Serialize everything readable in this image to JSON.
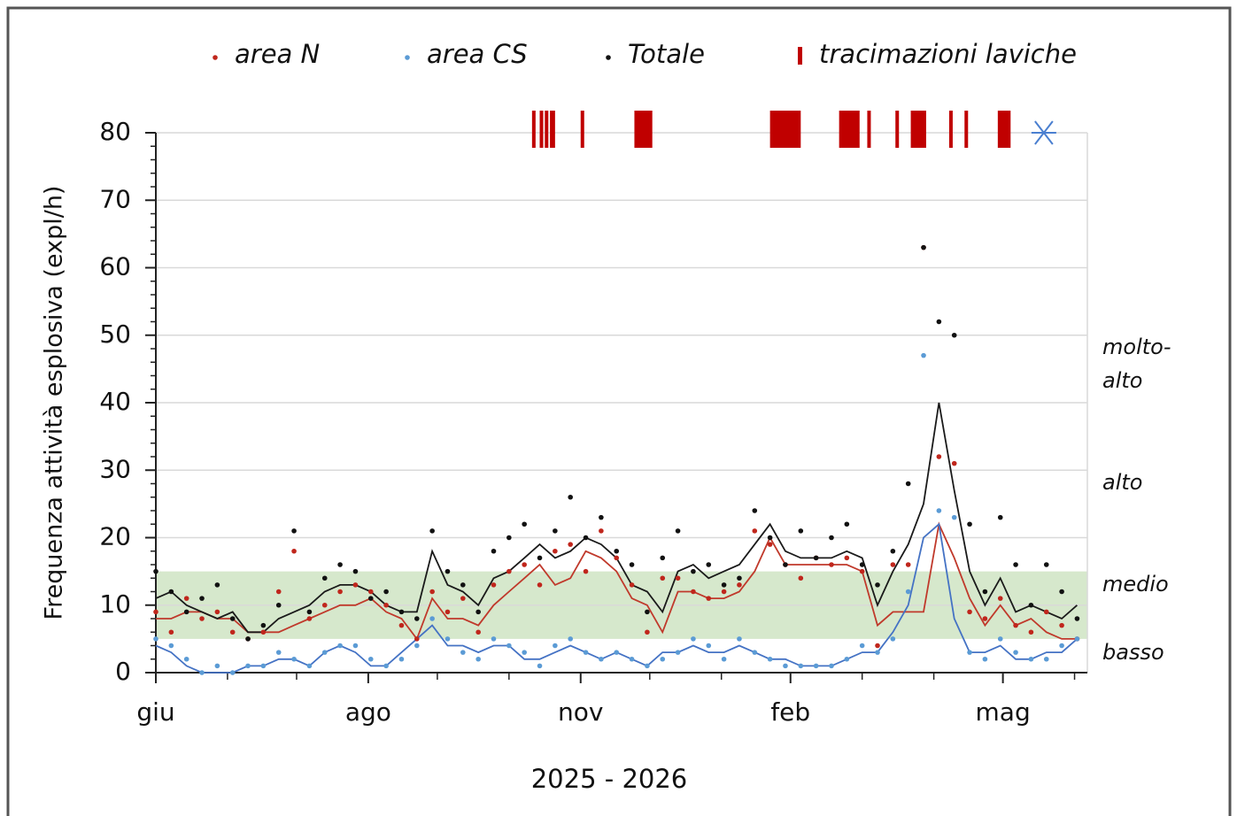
{
  "chart_data": {
    "type": "scatter",
    "ylabel": "Frequenza attività esplosiva (expl/h)",
    "xlabel": "2025 - 2026",
    "xlim": [
      0,
      364
    ],
    "xticks": [
      {
        "value": 0,
        "label": "giu"
      },
      {
        "value": 83,
        "label": "ago"
      },
      {
        "value": 166,
        "label": "nov"
      },
      {
        "value": 248,
        "label": "feb"
      },
      {
        "value": 331,
        "label": "mag"
      }
    ],
    "minor_xticks": [
      28,
      55,
      110,
      138,
      193,
      221,
      276,
      304,
      359
    ],
    "ylim": [
      0,
      80
    ],
    "yticks": [
      0,
      10,
      20,
      30,
      40,
      50,
      60,
      70,
      80
    ],
    "minor_yticks": [
      2,
      4,
      6,
      8,
      12,
      14,
      16,
      18,
      22,
      24,
      26,
      28,
      32,
      34,
      36,
      38,
      42,
      44,
      46,
      48,
      52,
      54,
      56,
      58,
      62,
      64,
      66,
      68,
      72,
      74,
      76,
      78
    ],
    "grid": true,
    "band": {
      "range": [
        5,
        15
      ],
      "color": "#d6e8cc"
    },
    "levels": [
      [
        "molto-",
        "alto"
      ],
      [
        "alto"
      ],
      [
        "medio"
      ],
      [
        "basso"
      ]
    ],
    "x": [
      0,
      6,
      12,
      18,
      24,
      30,
      36,
      42,
      48,
      54,
      60,
      66,
      72,
      78,
      84,
      90,
      96,
      102,
      108,
      114,
      120,
      126,
      132,
      138,
      144,
      150,
      156,
      162,
      168,
      174,
      180,
      186,
      192,
      198,
      204,
      210,
      216,
      222,
      228,
      234,
      240,
      246,
      252,
      258,
      264,
      270,
      276,
      282,
      288,
      294,
      300,
      306,
      312,
      318,
      324,
      330,
      336,
      342,
      348,
      354,
      360
    ],
    "series": [
      {
        "name": "area N",
        "color": "#c0261c",
        "values": [
          9,
          6,
          11,
          8,
          9,
          6,
          5,
          6,
          12,
          18,
          8,
          10,
          12,
          13,
          12,
          10,
          7,
          5,
          12,
          9,
          11,
          6,
          13,
          15,
          16,
          13,
          18,
          19,
          15,
          21,
          17,
          13,
          6,
          14,
          14,
          12,
          11,
          12,
          13,
          21,
          19,
          16,
          14,
          17,
          16,
          17,
          15,
          4,
          16,
          16,
          63,
          32,
          31,
          9,
          8,
          11,
          7,
          6,
          9,
          7,
          5
        ]
      },
      {
        "name": "area CS",
        "color": "#5b9bd5",
        "values": [
          5,
          4,
          2,
          0,
          1,
          0,
          1,
          1,
          3,
          2,
          1,
          3,
          4,
          4,
          2,
          1,
          2,
          4,
          8,
          5,
          3,
          2,
          5,
          4,
          3,
          1,
          4,
          5,
          3,
          2,
          3,
          2,
          1,
          2,
          3,
          5,
          4,
          2,
          5,
          3,
          2,
          1,
          1,
          1,
          1,
          2,
          4,
          3,
          5,
          12,
          47,
          24,
          23,
          3,
          2,
          5,
          3,
          2,
          2,
          4,
          5
        ]
      },
      {
        "name": "Totale",
        "color": "#111111",
        "values": [
          15,
          12,
          9,
          11,
          13,
          8,
          5,
          7,
          10,
          21,
          9,
          14,
          16,
          15,
          11,
          12,
          9,
          8,
          21,
          15,
          13,
          9,
          18,
          20,
          22,
          17,
          21,
          26,
          20,
          23,
          18,
          16,
          9,
          17,
          21,
          15,
          16,
          13,
          14,
          24,
          20,
          16,
          21,
          17,
          20,
          22,
          16,
          13,
          18,
          28,
          63,
          52,
          50,
          22,
          12,
          23,
          16,
          10,
          16,
          12,
          8
        ]
      }
    ],
    "smoothed_series": [
      {
        "color": "#c0392b",
        "values": [
          8,
          8,
          9,
          9,
          8,
          8,
          6,
          6,
          6,
          7,
          8,
          9,
          10,
          10,
          11,
          9,
          8,
          5,
          11,
          8,
          8,
          7,
          10,
          12,
          14,
          16,
          13,
          14,
          18,
          17,
          15,
          11,
          10,
          6,
          12,
          12,
          11,
          11,
          12,
          15,
          20,
          16,
          16,
          16,
          16,
          16,
          15,
          7,
          9,
          9,
          9,
          22,
          17,
          11,
          7,
          10,
          7,
          8,
          6,
          5,
          5
        ]
      },
      {
        "color": "#4472c4",
        "values": [
          4,
          3,
          1,
          0,
          0,
          0,
          1,
          1,
          2,
          2,
          1,
          3,
          4,
          3,
          1,
          1,
          3,
          5,
          7,
          4,
          4,
          3,
          4,
          4,
          2,
          2,
          3,
          4,
          3,
          2,
          3,
          2,
          1,
          3,
          3,
          4,
          3,
          3,
          4,
          3,
          2,
          2,
          1,
          1,
          1,
          2,
          3,
          3,
          6,
          10,
          20,
          22,
          8,
          3,
          3,
          4,
          2,
          2,
          3,
          3,
          5
        ]
      },
      {
        "color": "#1a1a1a",
        "values": [
          11,
          12,
          10,
          9,
          8,
          9,
          6,
          6,
          8,
          9,
          10,
          12,
          13,
          13,
          12,
          10,
          9,
          9,
          18,
          13,
          12,
          10,
          14,
          15,
          17,
          19,
          17,
          18,
          20,
          19,
          17,
          13,
          12,
          9,
          15,
          16,
          14,
          15,
          16,
          19,
          22,
          18,
          17,
          17,
          17,
          18,
          17,
          10,
          15,
          19,
          25,
          40,
          27,
          15,
          10,
          14,
          9,
          10,
          9,
          8,
          10
        ]
      }
    ],
    "lava_overflows": {
      "name": "tracimazioni laviche",
      "color": "#c00000",
      "intervals": [
        [
          147,
          148
        ],
        [
          150,
          151
        ],
        [
          152,
          153
        ],
        [
          154,
          156
        ],
        [
          166,
          167
        ],
        [
          187,
          194
        ],
        [
          240,
          252
        ],
        [
          267,
          275
        ],
        [
          278,
          279
        ],
        [
          289,
          290
        ],
        [
          295,
          301
        ],
        [
          310,
          311
        ],
        [
          316,
          317
        ],
        [
          329,
          334
        ]
      ]
    },
    "marker": {
      "x": 347,
      "y": 80,
      "color": "#4a7fd0"
    }
  }
}
